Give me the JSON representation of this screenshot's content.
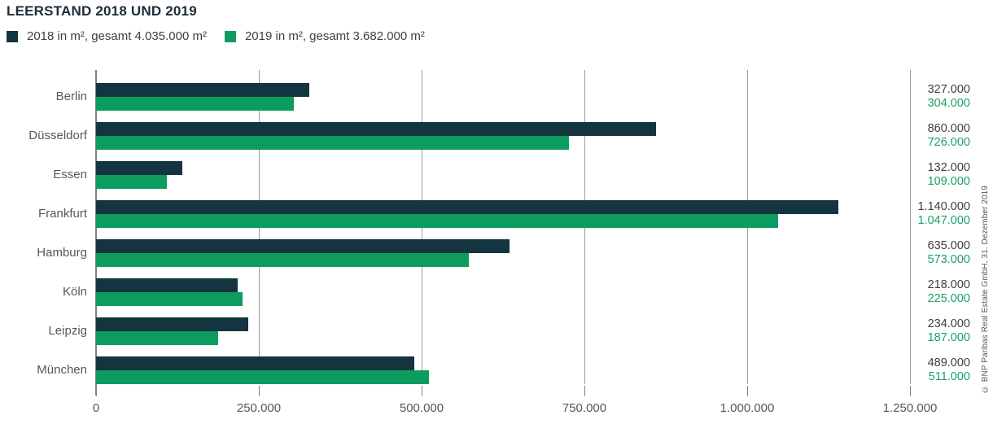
{
  "title": "LEERSTAND 2018 UND 2019",
  "legend": [
    {
      "label": "2018 in m², gesamt 4.035.000 m²",
      "color": "#143440"
    },
    {
      "label": "2019 in m², gesamt 3.682.000 m²",
      "color": "#0d9c5f"
    }
  ],
  "copyright": "© BNP Paribas Real Estate GmbH, 31. Dezember 2019",
  "colors": {
    "bar_2018": "#143440",
    "bar_2019": "#0d9c5f",
    "value_text_2018": "#3f3f3e",
    "value_text_2019": "#1aa164",
    "axis_line": "#828282",
    "gridline": "#9d9d9c",
    "label_text": "#575756",
    "title_text": "#1d2d36"
  },
  "chart_data": {
    "type": "bar",
    "orientation": "horizontal",
    "title": "LEERSTAND 2018 UND 2019",
    "categories": [
      "Berlin",
      "Düsseldorf",
      "Essen",
      "Frankfurt",
      "Hamburg",
      "Köln",
      "Leipzig",
      "München"
    ],
    "series": [
      {
        "name": "2018",
        "legend_label": "2018 in m², gesamt 4.035.000 m²",
        "total": 4035000,
        "color": "#143440",
        "value_color": "#3f3f3e",
        "values": [
          327000,
          860000,
          132000,
          1140000,
          635000,
          218000,
          234000,
          489000
        ],
        "value_labels": [
          "327.000",
          "860.000",
          "132.000",
          "1.140.000",
          "635.000",
          "218.000",
          "234.000",
          "489.000"
        ]
      },
      {
        "name": "2019",
        "legend_label": "2019 in m², gesamt 3.682.000 m²",
        "total": 3682000,
        "color": "#0d9c5f",
        "value_color": "#1aa164",
        "values": [
          304000,
          726000,
          109000,
          1047000,
          573000,
          225000,
          187000,
          511000
        ],
        "value_labels": [
          "304.000",
          "726.000",
          "109.000",
          "1.047.000",
          "573.000",
          "225.000",
          "187.000",
          "511.000"
        ]
      }
    ],
    "xlim": [
      0,
      1250000
    ],
    "x_ticks": [
      {
        "value": 0,
        "label": "0"
      },
      {
        "value": 250000,
        "label": "250.000"
      },
      {
        "value": 500000,
        "label": "500.000"
      },
      {
        "value": 750000,
        "label": "750.000"
      },
      {
        "value": 1000000,
        "label": "1.000.000"
      },
      {
        "value": 1250000,
        "label": "1.250.000"
      }
    ],
    "grid": "vertical",
    "legend_position": "top-left",
    "value_labels_position": "right-outside"
  }
}
